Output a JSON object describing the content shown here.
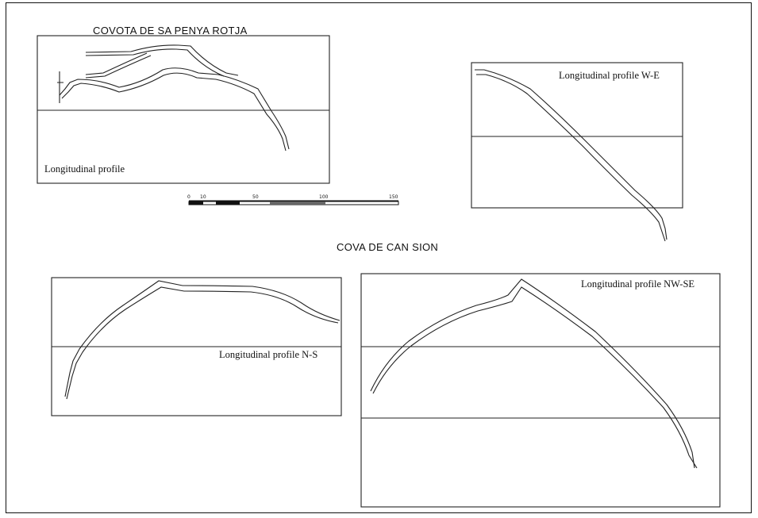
{
  "figure": {
    "site1": {
      "title": "COVOTA DE SA PENYA ROTJA",
      "profile_label": "Longitudinal profile",
      "profile_we_label": "Longitudinal profile W-E"
    },
    "scale_bar": {
      "ticks": [
        "0",
        "10",
        "50",
        "100",
        "150"
      ]
    },
    "site2": {
      "title": "COVA DE CAN SION",
      "profile_ns_label": "Longitudinal profile N-S",
      "profile_nwse_label": "Longitudinal profile NW-SE"
    }
  }
}
